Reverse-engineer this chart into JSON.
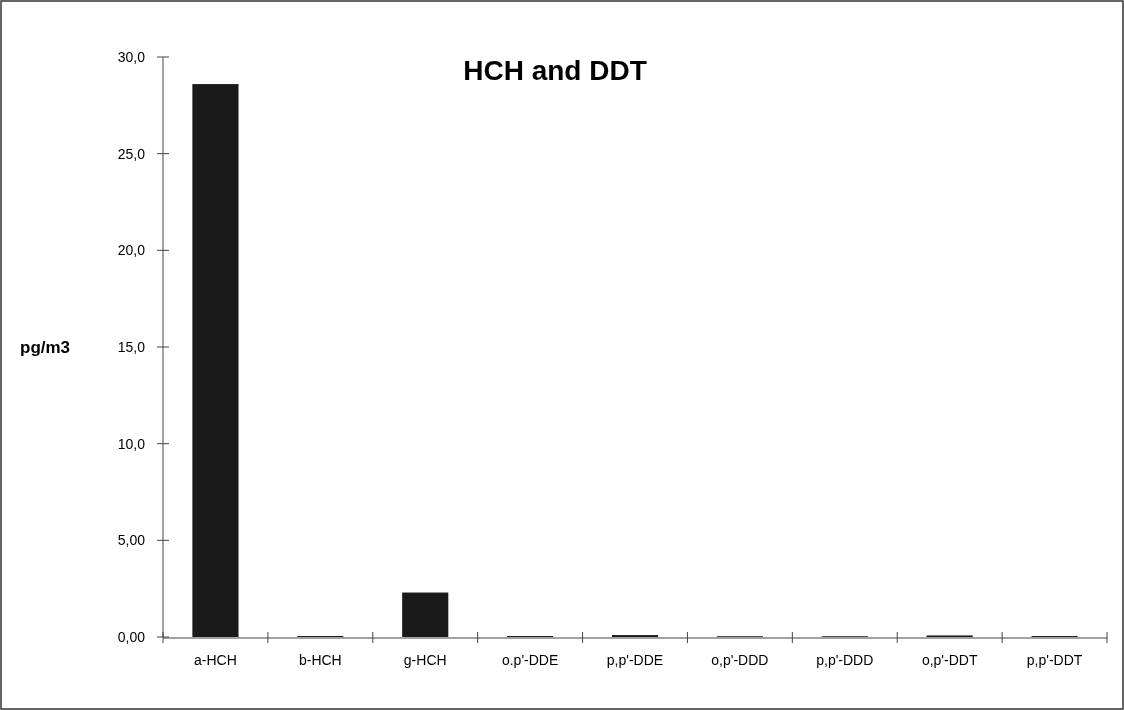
{
  "chart_data": {
    "type": "bar",
    "title": "HCH and DDT",
    "ylabel": "pg/m3",
    "categories": [
      "a-HCH",
      "b-HCH",
      "g-HCH",
      "o.p'-DDE",
      "p,p'-DDE",
      "o,p'-DDD",
      "p,p'-DDD",
      "o,p'-DDT",
      "p,p'-DDT"
    ],
    "series": [
      {
        "color": "#1a1a1a",
        "values": [
          28.6,
          0.05,
          2.3,
          0.05,
          0.1,
          0.04,
          0.04,
          0.08,
          0.05
        ]
      }
    ],
    "ylim": [
      0,
      30
    ],
    "yticks": [
      {
        "value": 0,
        "label": "0,00"
      },
      {
        "value": 5,
        "label": "5,00"
      },
      {
        "value": 10,
        "label": "10,0"
      },
      {
        "value": 15,
        "label": "15,0"
      },
      {
        "value": 20,
        "label": "20,0"
      },
      {
        "value": 25,
        "label": "25,0"
      },
      {
        "value": 30,
        "label": "30,0"
      }
    ],
    "grid": false
  }
}
